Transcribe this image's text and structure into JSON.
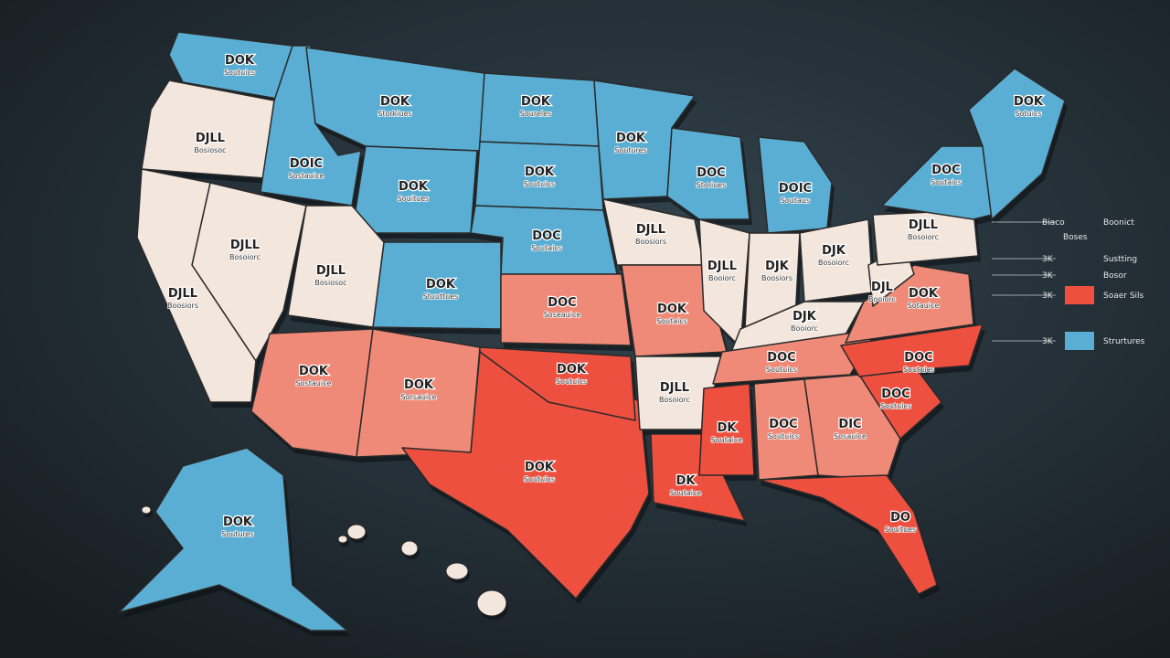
{
  "map": {
    "regions": [
      {
        "label": "DOK",
        "sublabel": "Soutuics",
        "color": "#5aaed3"
      },
      {
        "label": "DJLL",
        "sublabel": "Bosiosoc",
        "color": "#f3e6dd"
      },
      {
        "label": "DOIC",
        "sublabel": "Sostauice",
        "color": "#5aaed3"
      },
      {
        "label": "DOK",
        "sublabel": "Storkiues",
        "color": "#5aaed3"
      },
      {
        "label": "DOK",
        "sublabel": "Soureles",
        "color": "#5aaed3"
      },
      {
        "label": "DOK",
        "sublabel": "Soutuics",
        "color": "#5aaed3"
      },
      {
        "label": "DOK",
        "sublabel": "Soutures",
        "color": "#5aaed3"
      },
      {
        "label": "DOK",
        "sublabel": "Souitues",
        "color": "#5aaed3"
      },
      {
        "label": "DOC",
        "sublabel": "Soutaics",
        "color": "#5aaed3"
      },
      {
        "label": "DOK",
        "sublabel": "Stuuttues",
        "color": "#5aaed3"
      },
      {
        "label": "DOC",
        "sublabel": "Storiues",
        "color": "#5aaed3"
      },
      {
        "label": "DOIC",
        "sublabel": "Soutaus",
        "color": "#5aaed3"
      },
      {
        "label": "DJLL",
        "sublabel": "Bosoiorc",
        "color": "#f3e6dd"
      },
      {
        "label": "DJLL",
        "sublabel": "Boosiors",
        "color": "#f3e6dd"
      },
      {
        "label": "DJLL",
        "sublabel": "Bosiosoc",
        "color": "#f3e6dd"
      },
      {
        "label": "DOK",
        "sublabel": "Sostauice",
        "color": "#f08a78"
      },
      {
        "label": "DOK",
        "sublabel": "Sorsauice",
        "color": "#f08a78"
      },
      {
        "label": "DOK",
        "sublabel": "Soutuics",
        "color": "#ee5040"
      },
      {
        "label": "DOK",
        "sublabel": "Soutuics",
        "color": "#ee5040"
      },
      {
        "label": "DOC",
        "sublabel": "Soseauice",
        "color": "#f08a78"
      },
      {
        "label": "DJLL",
        "sublabel": "Boosiors",
        "color": "#f3e6dd"
      },
      {
        "label": "DOK",
        "sublabel": "Soutaics",
        "color": "#f08a78"
      },
      {
        "label": "DJLL",
        "sublabel": "Bosoiorc",
        "color": "#f3e6dd"
      },
      {
        "label": "DK",
        "sublabel": "Soutaice",
        "color": "#ee5040"
      },
      {
        "label": "DJLL",
        "sublabel": "Booiorc",
        "color": "#f3e6dd"
      },
      {
        "label": "DJK",
        "sublabel": "Boosiors",
        "color": "#f3e6dd"
      },
      {
        "label": "DJK",
        "sublabel": "Bosoiorc",
        "color": "#f3e6dd"
      },
      {
        "label": "DJK",
        "sublabel": "Booiorc",
        "color": "#f3e6dd"
      },
      {
        "label": "DOC",
        "sublabel": "Soutuics",
        "color": "#f08a78"
      },
      {
        "label": "DK",
        "sublabel": "Soutaice",
        "color": "#ee5040"
      },
      {
        "label": "DOC",
        "sublabel": "Soutuics",
        "color": "#f08a78"
      },
      {
        "label": "DIC",
        "sublabel": "Sosauice",
        "color": "#f08a78"
      },
      {
        "label": "DO",
        "sublabel": "Souitues",
        "color": "#ee5040"
      },
      {
        "label": "DOC",
        "sublabel": "Soutuics",
        "color": "#ee5040"
      },
      {
        "label": "DOC",
        "sublabel": "Soutuics",
        "color": "#ee5040"
      },
      {
        "label": "DOK",
        "sublabel": "Sotauice",
        "color": "#f08a78"
      },
      {
        "label": "DJL",
        "sublabel": "Booiorc",
        "color": "#f3e6dd"
      },
      {
        "label": "DJLL",
        "sublabel": "Bosoiorc",
        "color": "#f3e6dd"
      },
      {
        "label": "DOC",
        "sublabel": "Soutaics",
        "color": "#5aaed3"
      },
      {
        "label": "DOK",
        "sublabel": "Sotuics",
        "color": "#5aaed3"
      },
      {
        "label": "DOK",
        "sublabel": "Soutures",
        "color": "#5aaed3"
      }
    ],
    "hawaii_color": "#f3e6dd",
    "legend": {
      "rows": [
        {
          "key": "Biaco",
          "text": "Boonict"
        },
        {
          "key": "3K",
          "text": "Sustting"
        },
        {
          "key": "3K",
          "text": "Bosor"
        },
        {
          "key": "3K",
          "text": "Soaer Sils",
          "color": "#ee5040"
        },
        {
          "key": "3K",
          "text": "Strurtures",
          "color": "#5aaed3"
        }
      ],
      "note": "Boses"
    }
  }
}
